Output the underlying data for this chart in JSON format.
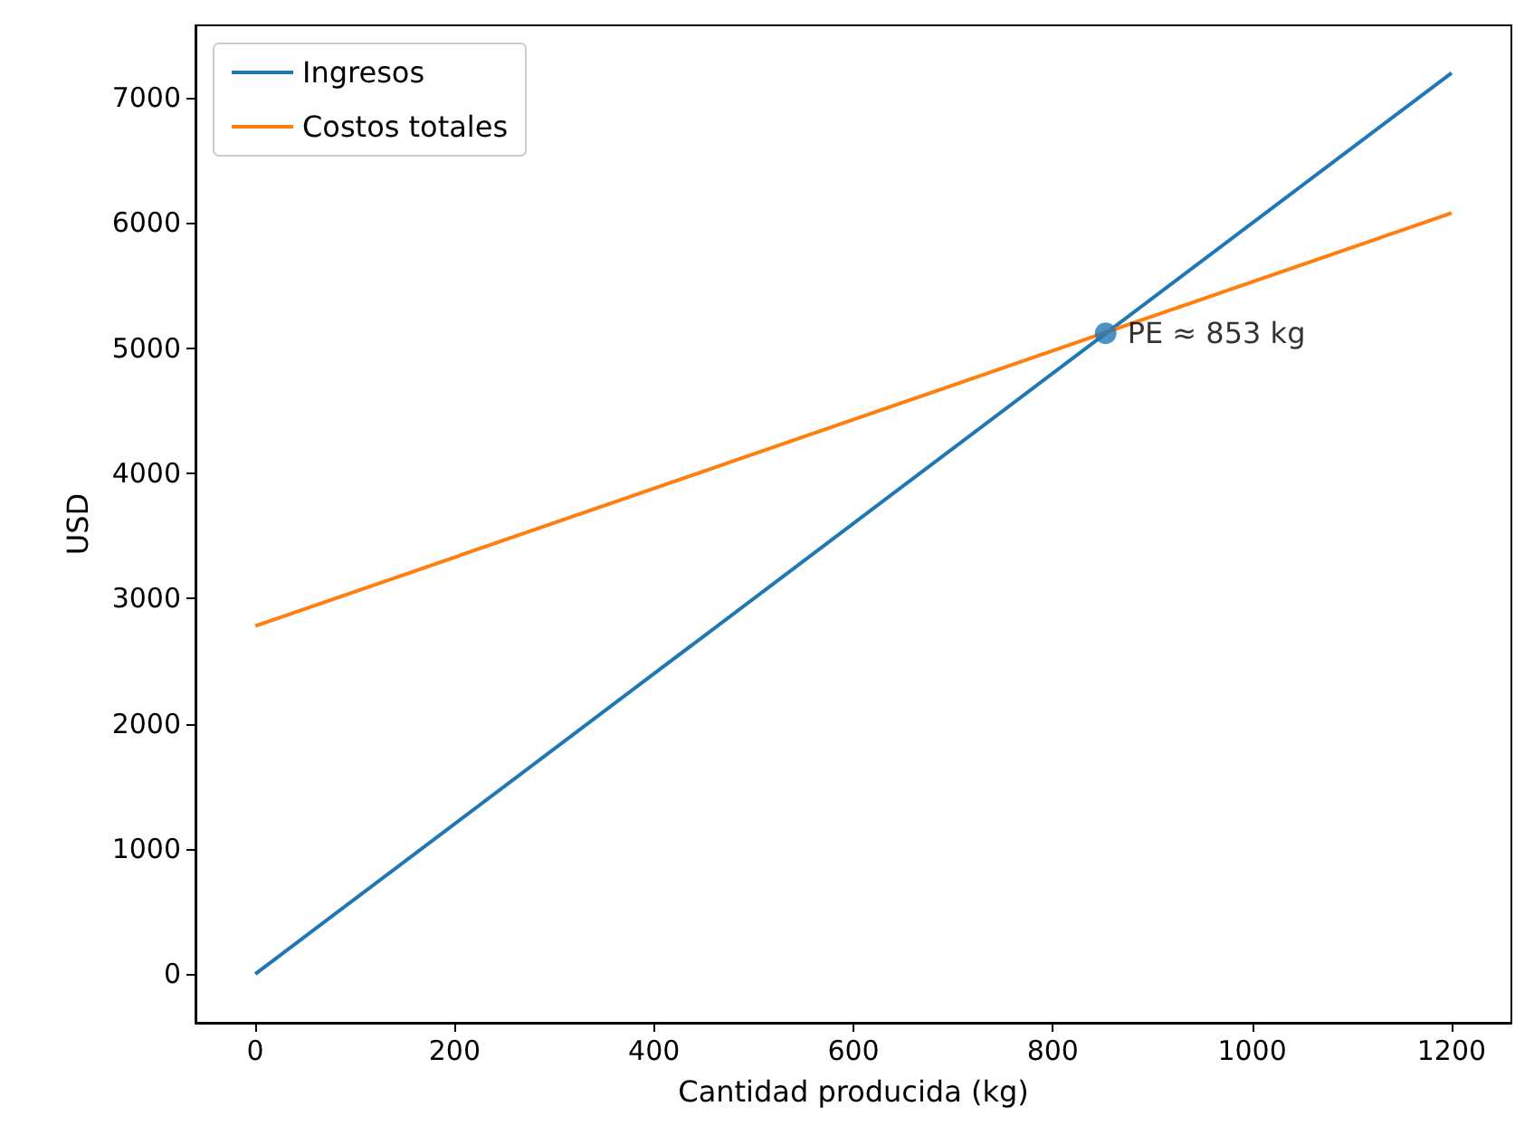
{
  "chart_data": {
    "type": "line",
    "xlabel": "Cantidad producida (kg)",
    "ylabel": "USD",
    "x": [
      0,
      1200
    ],
    "series": [
      {
        "name": "Ingresos",
        "color": "#1f77b4",
        "values": [
          0,
          7200
        ]
      },
      {
        "name": "Costos totales",
        "color": "#ff7f0e",
        "values": [
          2780,
          6080
        ]
      },
      {
        "type": "scatter",
        "color": "#1f77b4",
        "x": [
          853
        ],
        "values": [
          5120
        ],
        "marker": "circle"
      }
    ],
    "annotations": [
      {
        "text": "PE ≈ 853 kg",
        "x": 853,
        "y": 5120
      }
    ],
    "xlim": [
      -60,
      1260
    ],
    "xticks": [
      0,
      200,
      400,
      600,
      800,
      1000,
      1200
    ],
    "ylim": [
      -390,
      7580
    ],
    "yticks": [
      0,
      1000,
      2000,
      3000,
      4000,
      5000,
      6000,
      7000
    ],
    "grid": false,
    "legend": "top left"
  }
}
